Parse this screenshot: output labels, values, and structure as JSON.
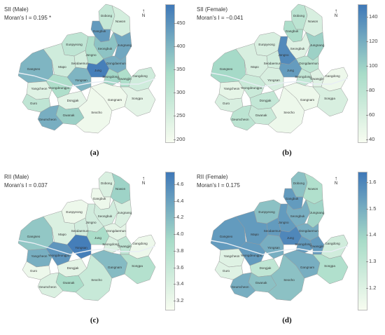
{
  "panels": [
    {
      "id": "a",
      "title": "SII (Male)",
      "stat": "Moran's I = 0.195 *",
      "label": "(a)",
      "ticks": [
        "450",
        "400",
        "350",
        "300",
        "250",
        "200"
      ],
      "scale": [
        195,
        490
      ],
      "values": {
        "Dobong": 290,
        "Nowon": 260,
        "Gangbuk": 440,
        "Eunpyeong": 300,
        "Seongbuk": 380,
        "Jungnang": 420,
        "Jongno": 330,
        "Dongdaemun": 410,
        "Gangseo": 400,
        "Mapo": 270,
        "Seodaemun": 260,
        "Jung": 480,
        "Seongdong": 350,
        "Gwangjin": 330,
        "Gangdong": 270,
        "Yangcheon": 240,
        "Yeongdeungpo": 330,
        "Yongsan": 400,
        "Guro": 300,
        "Dongjak": 230,
        "Gwanak": 360,
        "Geumcheon": 410,
        "Seocho": 210,
        "Gangnam": 210,
        "Songpa": 230
      }
    },
    {
      "id": "b",
      "title": "SII (Female)",
      "stat": "Moran's I = −0.041",
      "label": "(b)",
      "ticks": [
        "140",
        "120",
        "100",
        "80",
        "60",
        "40"
      ],
      "scale": [
        38,
        150
      ],
      "values": {
        "Dobong": 80,
        "Nowon": 60,
        "Gangbuk": 90,
        "Eunpyeong": 60,
        "Seongbuk": 55,
        "Jungnang": 100,
        "Jongno": 140,
        "Dongdaemun": 80,
        "Gangseo": 95,
        "Mapo": 60,
        "Seodaemun": 65,
        "Jung": 130,
        "Seongdong": 75,
        "Gwangjin": 55,
        "Gangdong": 45,
        "Yangcheon": 50,
        "Yeongdeungpo": 70,
        "Yongsan": 60,
        "Guro": 60,
        "Dongjak": 75,
        "Gwanak": 70,
        "Geumcheon": 80,
        "Seocho": 45,
        "Gangnam": 45,
        "Songpa": 60
      }
    },
    {
      "id": "c",
      "title": "RII (Male)",
      "stat": "Moran's I = 0.037",
      "label": "(c)",
      "ticks": [
        "4.6",
        "4.4",
        "4.2",
        "4.0",
        "3.8",
        "3.6",
        "3.4",
        "3.2"
      ],
      "scale": [
        3.1,
        4.75
      ],
      "values": {
        "Dobong": 3.4,
        "Nowon": 4.0,
        "Gangbuk": 3.2,
        "Eunpyeong": 3.2,
        "Seongbuk": 3.5,
        "Jungnang": 3.4,
        "Jongno": 3.5,
        "Dongdaemun": 3.3,
        "Gangseo": 4.1,
        "Mapo": 3.4,
        "Seodaemun": 3.5,
        "Jung": 3.9,
        "Seongdong": 3.4,
        "Gwangjin": 3.7,
        "Gangdong": 3.2,
        "Yangcheon": 4.3,
        "Yeongdeungpo": 4.5,
        "Yongsan": 4.7,
        "Guro": 3.2,
        "Dongjak": 3.3,
        "Gwanak": 3.9,
        "Geumcheon": 3.4,
        "Seocho": 3.6,
        "Gangnam": 4.2,
        "Songpa": 3.8
      }
    },
    {
      "id": "d",
      "title": "RII (Female)",
      "stat": "Moran's I = 0.175",
      "label": "(d)",
      "ticks": [
        "1.6",
        "1.5",
        "1.4",
        "1.3",
        "1.2"
      ],
      "scale": [
        1.12,
        1.64
      ],
      "values": {
        "Dobong": 1.45,
        "Nowon": 1.35,
        "Gangbuk": 1.55,
        "Eunpyeong": 1.45,
        "Seongbuk": 1.5,
        "Jungnang": 1.4,
        "Jongno": 1.55,
        "Dongdaemun": 1.5,
        "Gangseo": 1.55,
        "Mapo": 1.55,
        "Seodaemun": 1.55,
        "Jung": 1.6,
        "Seongdong": 1.55,
        "Gwangjin": 1.55,
        "Gangdong": 1.25,
        "Yangcheon": 1.2,
        "Yeongdeungpo": 1.55,
        "Yongsan": 1.5,
        "Guro": 1.2,
        "Dongjak": 1.3,
        "Gwanak": 1.45,
        "Geumcheon": 1.5,
        "Seocho": 1.45,
        "Gangnam": 1.5,
        "Songpa": 1.35
      }
    }
  ],
  "north_label": "N",
  "district_names": [
    "Dobong",
    "Nowon",
    "Gangbuk",
    "Eunpyeong",
    "Seongbuk",
    "Jungnang",
    "Jongno",
    "Dongdaemun",
    "Gangseo",
    "Mapo",
    "Seodaemun",
    "Jung",
    "Seongdong",
    "Gwangjin",
    "Gangdong",
    "Yangcheon",
    "Yeongdeungpo",
    "Yongsan",
    "Guro",
    "Dongjak",
    "Gwanak",
    "Geumcheon",
    "Seocho",
    "Gangnam",
    "Songpa"
  ],
  "colors": {
    "low": "#f7fcf0",
    "mid": "#a8dcc8",
    "high": "#3f78b8",
    "border": "#9a9a9a"
  }
}
